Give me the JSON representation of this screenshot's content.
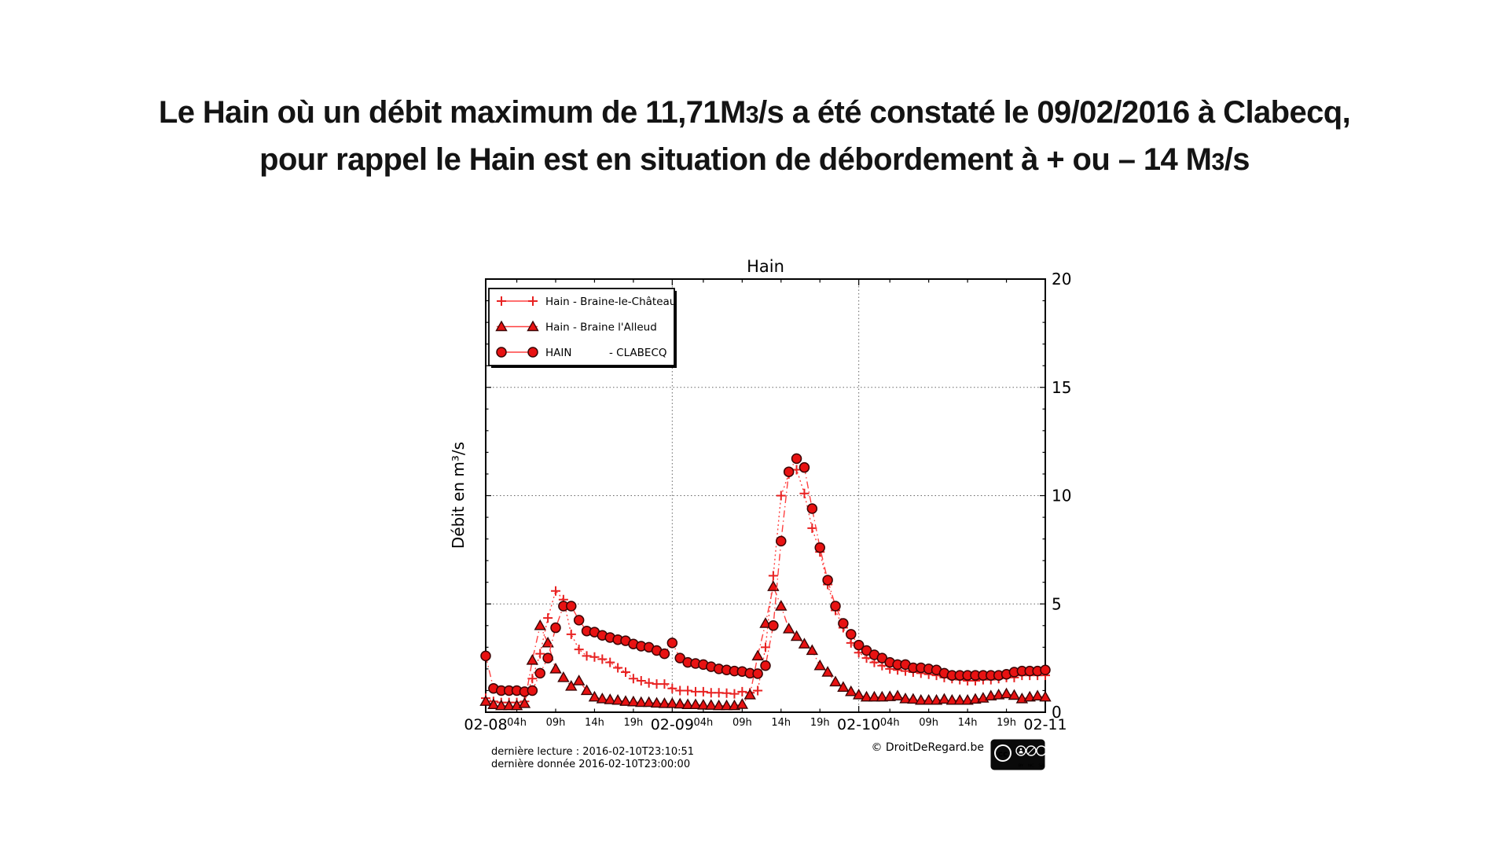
{
  "page": {
    "title_line1": "Le Hain où un débit maximum de 11,71M3/s a été constaté le 09/02/2016 à Clabecq,",
    "title_line2": "pour rappel le Hain est en situation de débordement à + ou – 14 M3/s"
  },
  "chart_data": {
    "type": "line",
    "title": "Hain",
    "ylabel": "Débit en m³/s",
    "ylim": [
      0,
      20
    ],
    "yticks": [
      0,
      5,
      10,
      15,
      20
    ],
    "grid": "dotted horizontal at 5/10/15 and vertical at each day boundary",
    "legend_position": "upper left",
    "x_unit": "hourly values from 2016-02-08 00:00 to 2016-02-11 00:00",
    "x_range_hours": 72,
    "day_tick_hours": [
      0,
      24,
      48,
      72
    ],
    "day_labels": [
      "02-08",
      "02-09",
      "02-10",
      "02-11"
    ],
    "hour_tick_hours": [
      4,
      9,
      14,
      19
    ],
    "hour_labels": [
      "04h",
      "09h",
      "14h",
      "19h"
    ],
    "colors": {
      "line": "#ff4040",
      "marker_fill": "#e81212",
      "marker_edge": "#3a0505",
      "plus": "#e82222",
      "grid": "#666666"
    },
    "series": [
      {
        "name": "Hain - Braine-le-Château",
        "marker": "plus",
        "linestyle": "dotted",
        "values": [
          0.65,
          0.5,
          0.45,
          0.45,
          0.45,
          0.5,
          1.55,
          2.7,
          4.35,
          5.6,
          5.2,
          3.6,
          2.9,
          2.6,
          2.55,
          2.45,
          2.3,
          2.05,
          1.85,
          1.55,
          1.45,
          1.35,
          1.3,
          1.3,
          1.1,
          1.0,
          1.0,
          0.95,
          0.95,
          0.9,
          0.9,
          0.88,
          0.85,
          0.95,
          0.9,
          1.0,
          3.0,
          6.3,
          10.0,
          11.0,
          11.2,
          10.1,
          8.5,
          7.4,
          5.9,
          4.7,
          3.9,
          3.2,
          2.75,
          2.5,
          2.3,
          2.15,
          2.0,
          1.95,
          1.9,
          1.85,
          1.8,
          1.75,
          1.7,
          1.6,
          1.55,
          1.5,
          1.45,
          1.45,
          1.5,
          1.5,
          1.55,
          1.6,
          1.6,
          1.7,
          1.7,
          1.7,
          1.7
        ]
      },
      {
        "name": "Hain - Braine l'Alleud",
        "marker": "triangle",
        "linestyle": "dashdot",
        "values": [
          0.5,
          0.35,
          0.3,
          0.3,
          0.3,
          0.4,
          2.4,
          4.0,
          3.2,
          2.0,
          1.6,
          1.2,
          1.45,
          1.0,
          0.7,
          0.62,
          0.58,
          0.55,
          0.5,
          0.48,
          0.45,
          0.45,
          0.42,
          0.4,
          0.4,
          0.38,
          0.35,
          0.35,
          0.33,
          0.32,
          0.3,
          0.3,
          0.3,
          0.36,
          0.8,
          2.6,
          4.1,
          5.8,
          4.9,
          3.85,
          3.5,
          3.15,
          2.85,
          2.15,
          1.85,
          1.4,
          1.15,
          0.95,
          0.8,
          0.7,
          0.7,
          0.7,
          0.72,
          0.75,
          0.62,
          0.6,
          0.55,
          0.55,
          0.55,
          0.6,
          0.55,
          0.55,
          0.55,
          0.6,
          0.65,
          0.75,
          0.8,
          0.85,
          0.78,
          0.62,
          0.7,
          0.75,
          0.7
        ]
      },
      {
        "name": "HAIN",
        "name_right": "- CLABECQ",
        "marker": "circle",
        "linestyle": "dashdot",
        "values": [
          2.6,
          1.1,
          1.0,
          1.0,
          1.0,
          0.95,
          1.0,
          1.8,
          2.5,
          3.9,
          4.9,
          4.9,
          4.25,
          3.75,
          3.7,
          3.55,
          3.45,
          3.35,
          3.3,
          3.15,
          3.05,
          3.0,
          2.85,
          2.7,
          3.2,
          2.5,
          2.3,
          2.25,
          2.2,
          2.1,
          2.0,
          1.95,
          1.9,
          1.88,
          1.8,
          1.78,
          2.15,
          4.0,
          7.9,
          11.1,
          11.71,
          11.3,
          9.4,
          7.6,
          6.1,
          4.9,
          4.1,
          3.6,
          3.1,
          2.85,
          2.65,
          2.5,
          2.3,
          2.2,
          2.2,
          2.05,
          2.05,
          2.0,
          1.95,
          1.8,
          1.7,
          1.7,
          1.7,
          1.7,
          1.7,
          1.7,
          1.7,
          1.75,
          1.85,
          1.9,
          1.9,
          1.9,
          1.95
        ]
      }
    ]
  },
  "footer": {
    "last_reading": "dernière lecture : 2016-02-10T23:10:51",
    "last_data": "dernière donnée  2016-02-10T23:00:00",
    "credit": "© DroitDeRegard.be",
    "cc_badge": {
      "logo": "cc",
      "items": [
        "BY",
        "NC",
        "SA"
      ]
    }
  }
}
